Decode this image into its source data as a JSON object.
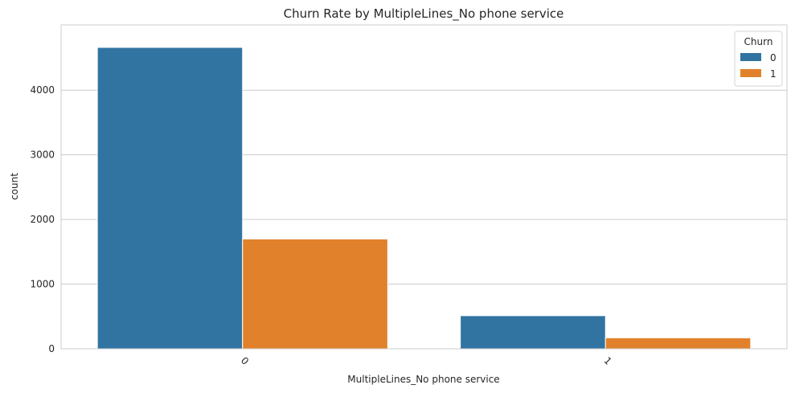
{
  "chart_data": {
    "type": "bar",
    "title": "Churn Rate by MultipleLines_No phone service",
    "xlabel": "MultipleLines_No phone service",
    "ylabel": "count",
    "categories": [
      "0",
      "1"
    ],
    "series": [
      {
        "name": "0",
        "values": [
          4662,
          512
        ]
      },
      {
        "name": "1",
        "values": [
          1699,
          170
        ]
      }
    ],
    "ylim": [
      0,
      5010
    ],
    "yticks": [
      0,
      1000,
      2000,
      3000,
      4000
    ],
    "grid": true,
    "legend": {
      "title": "Churn",
      "placement": "top-right"
    },
    "colors": [
      "#3274a1",
      "#e1812c"
    ]
  }
}
